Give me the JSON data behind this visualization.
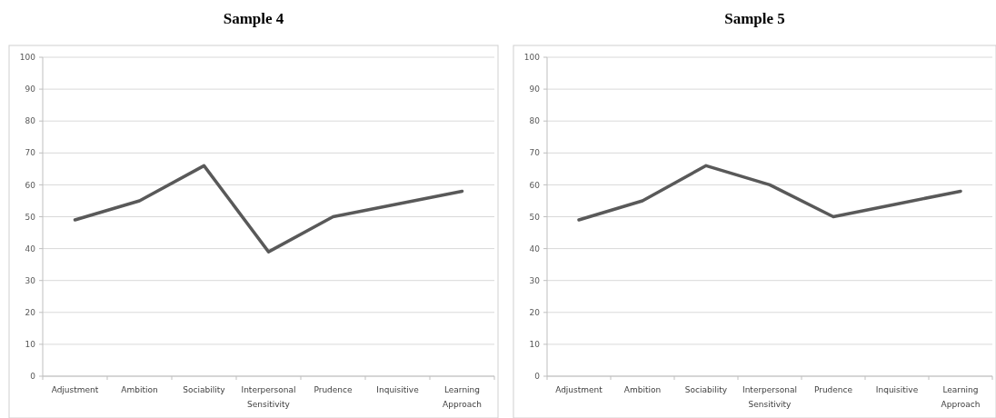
{
  "chart_data": [
    {
      "type": "line",
      "title": "Sample 4",
      "categories": [
        "Adjustment",
        "Ambition",
        "Sociability",
        "Interpersonal Sensitivity",
        "Prudence",
        "Inquisitive",
        "Learning Approach"
      ],
      "series": [
        {
          "color": "#595959",
          "values": [
            49,
            55,
            66,
            39,
            50,
            54,
            58
          ]
        }
      ],
      "ylim": [
        0,
        100
      ],
      "yticks": [
        0,
        10,
        20,
        30,
        40,
        50,
        60,
        70,
        80,
        90,
        100
      ],
      "grid": "y",
      "marker": "none",
      "line_style": "solid"
    },
    {
      "type": "line",
      "title": "Sample 5",
      "categories": [
        "Adjustment",
        "Ambition",
        "Sociability",
        "Interpersonal Sensitivity",
        "Prudence",
        "Inquisitive",
        "Learning Approach"
      ],
      "series": [
        {
          "color": "#595959",
          "values": [
            49,
            55,
            66,
            60,
            50,
            54,
            58
          ]
        }
      ],
      "ylim": [
        0,
        100
      ],
      "yticks": [
        0,
        10,
        20,
        30,
        40,
        50,
        60,
        70,
        80,
        90,
        100
      ],
      "grid": "y",
      "marker": "none",
      "line_style": "solid"
    }
  ]
}
